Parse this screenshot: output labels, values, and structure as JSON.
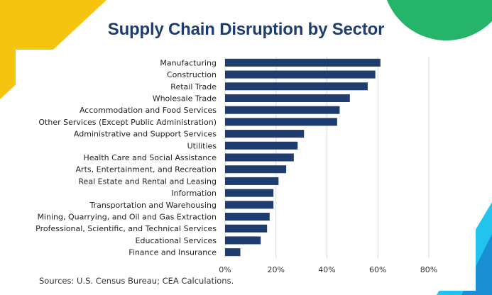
{
  "colors": {
    "bar": "#1f3c6e",
    "title": "#1f3c6e",
    "grid": "#d9d9d9",
    "deco_yellow": "#f6c40f",
    "deco_green": "#26b36a",
    "deco_cyan": "#22c4ee",
    "deco_blue": "#1a8fd6"
  },
  "chart_data": {
    "type": "bar",
    "orientation": "horizontal",
    "title": "Supply Chain Disruption by Sector",
    "xlabel": "",
    "ylabel": "",
    "categories": [
      "Manufacturing",
      "Construction",
      "Retail Trade",
      "Wholesale Trade",
      "Accommodation and Food Services",
      "Other Services (Except Public Administration)",
      "Administrative and Support Services",
      "Utilities",
      "Health Care and Social Assistance",
      "Arts, Entertainment, and Recreation",
      "Real Estate and Rental and Leasing",
      "Information",
      "Transportation and Warehousing",
      "Mining, Quarrying, and Oil and Gas Extraction",
      "Professional, Scientific, and Technical Services",
      "Educational Services",
      "Finance and Insurance"
    ],
    "values": [
      61,
      59,
      56,
      49,
      45,
      44,
      31,
      28.5,
      27,
      24,
      21,
      19,
      19,
      17.5,
      16.5,
      14,
      6
    ],
    "xlim": [
      0,
      80
    ],
    "xticks": [
      0,
      20,
      40,
      60,
      80
    ],
    "xtick_labels": [
      "0%",
      "20%",
      "40%",
      "60%",
      "80%"
    ],
    "grid": "vertical"
  },
  "source": "Sources: U.S. Census Bureau; CEA Calculations."
}
